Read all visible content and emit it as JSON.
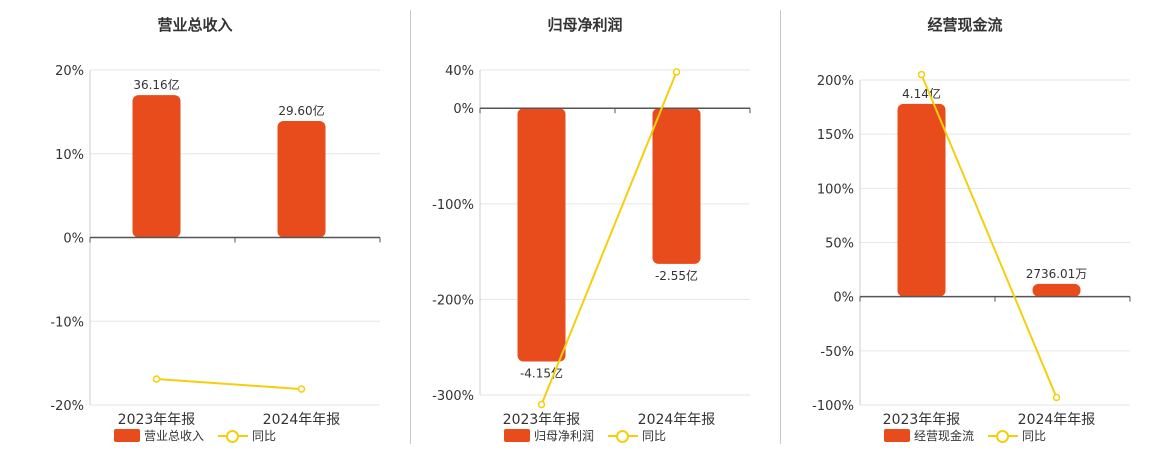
{
  "colors": {
    "bar": "#e84b1c",
    "line": "#f5cf0e",
    "axis": "#555555",
    "grid": "#e6e6e6"
  },
  "chart_data": [
    {
      "type": "bar",
      "title": "营业总收入",
      "categories": [
        "2023年年报",
        "2024年年报"
      ],
      "bar_series_name": "营业总收入",
      "bar_values": [
        36.16,
        29.6
      ],
      "bar_value_unit": "亿",
      "bar_labels": [
        "36.16亿",
        "29.60亿"
      ],
      "line_series_name": "同比",
      "line_values": [
        -16.9,
        -18.1
      ],
      "y_ticks": [
        "20%",
        "10%",
        "0%",
        "-10%",
        "-20%"
      ],
      "ylim": [
        -20,
        20
      ]
    },
    {
      "type": "bar",
      "title": "归母净利润",
      "categories": [
        "2023年年报",
        "2024年年报"
      ],
      "bar_series_name": "归母净利润",
      "bar_values": [
        -4.15,
        -2.55
      ],
      "bar_value_unit": "亿",
      "bar_labels": [
        "-4.15亿",
        "-2.55亿"
      ],
      "line_series_name": "同比",
      "line_values": [
        -310,
        38
      ],
      "y_ticks": [
        "40%",
        "0%",
        "-100%",
        "-200%",
        "-300%"
      ],
      "ylim": [
        -310,
        40
      ]
    },
    {
      "type": "bar",
      "title": "经营现金流",
      "categories": [
        "2023年年报",
        "2024年年报"
      ],
      "bar_series_name": "经营现金流",
      "bar_values": [
        4.14,
        0.273601
      ],
      "bar_value_unit": "亿",
      "bar_labels": [
        "4.14亿",
        "2736.01万"
      ],
      "line_series_name": "同比",
      "line_values": [
        205,
        -93
      ],
      "y_ticks": [
        "200%",
        "150%",
        "100%",
        "50%",
        "0%",
        "-50%",
        "-100%"
      ],
      "ylim": [
        -100,
        210
      ]
    }
  ]
}
